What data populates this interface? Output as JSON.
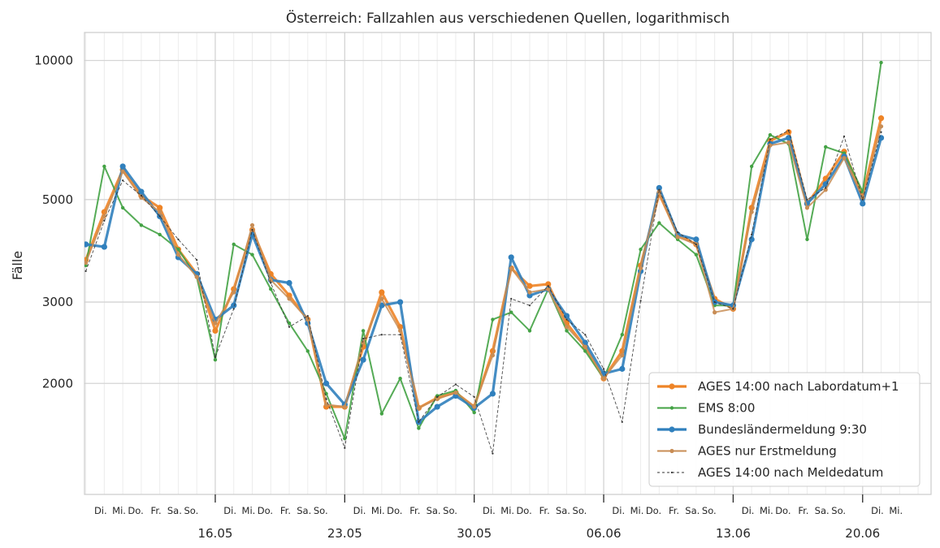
{
  "chart_data": {
    "type": "line",
    "title": "Österreich: Fallzahlen aus verschiedenen Quellen, logarithmisch",
    "xlabel": "",
    "ylabel": "Fälle",
    "y_scale": "log",
    "ylim": [
      1150,
      11500
    ],
    "yticks": [
      2000,
      3000,
      5000,
      10000
    ],
    "xlim": [
      -0.07,
      45.7
    ],
    "week_ticks": [
      7,
      14,
      21,
      28,
      35,
      42
    ],
    "week_labels": [
      "16.05",
      "23.05",
      "30.05",
      "06.06",
      "13.06",
      "20.06"
    ],
    "day_labels": [
      {
        "x": 0.8,
        "label": "Di."
      },
      {
        "x": 1.8,
        "label": "Mi."
      },
      {
        "x": 2.7,
        "label": "Do."
      },
      {
        "x": 3.8,
        "label": "Fr."
      },
      {
        "x": 4.8,
        "label": "Sa."
      },
      {
        "x": 5.7,
        "label": "So."
      },
      {
        "x": 7.8,
        "label": "Di."
      },
      {
        "x": 8.8,
        "label": "Mi."
      },
      {
        "x": 9.7,
        "label": "Do."
      },
      {
        "x": 10.8,
        "label": "Fr."
      },
      {
        "x": 11.8,
        "label": "Sa."
      },
      {
        "x": 12.7,
        "label": "So."
      },
      {
        "x": 14.8,
        "label": "Di."
      },
      {
        "x": 15.8,
        "label": "Mi."
      },
      {
        "x": 16.7,
        "label": "Do."
      },
      {
        "x": 17.8,
        "label": "Fr."
      },
      {
        "x": 18.8,
        "label": "Sa."
      },
      {
        "x": 19.7,
        "label": "So."
      },
      {
        "x": 21.8,
        "label": "Di."
      },
      {
        "x": 22.8,
        "label": "Mi."
      },
      {
        "x": 23.7,
        "label": "Do."
      },
      {
        "x": 24.8,
        "label": "Fr."
      },
      {
        "x": 25.8,
        "label": "Sa."
      },
      {
        "x": 26.7,
        "label": "So."
      },
      {
        "x": 28.8,
        "label": "Di."
      },
      {
        "x": 29.8,
        "label": "Mi."
      },
      {
        "x": 30.7,
        "label": "Do."
      },
      {
        "x": 31.8,
        "label": "Fr."
      },
      {
        "x": 32.8,
        "label": "Sa."
      },
      {
        "x": 33.7,
        "label": "So."
      },
      {
        "x": 35.8,
        "label": "Di."
      },
      {
        "x": 36.8,
        "label": "Mi."
      },
      {
        "x": 37.7,
        "label": "Do."
      },
      {
        "x": 38.8,
        "label": "Fr."
      },
      {
        "x": 39.8,
        "label": "Sa."
      },
      {
        "x": 40.7,
        "label": "So."
      },
      {
        "x": 42.8,
        "label": "Di."
      },
      {
        "x": 43.8,
        "label": "Mi."
      }
    ],
    "grid": true,
    "legend_position": "bottom-right",
    "series": [
      {
        "name": "AGES 14:00 nach Labordatum+1",
        "color": "#ee8427",
        "width": 3.2,
        "marker": 3.6,
        "dash": "",
        "x": [
          0,
          1,
          2,
          3,
          4,
          5,
          6,
          7,
          8,
          9,
          10,
          11,
          12,
          13,
          14,
          15,
          16,
          17,
          18,
          19,
          20,
          21,
          22,
          23,
          24,
          25,
          26,
          27,
          28,
          29,
          30,
          31,
          32,
          33,
          34,
          35,
          36,
          37,
          38,
          39,
          40,
          41,
          42,
          43
        ],
        "values": [
          3700,
          4700,
          5800,
          5100,
          4800,
          3900,
          3450,
          2600,
          3200,
          4300,
          3450,
          3100,
          2750,
          1780,
          1780,
          2400,
          3150,
          2650,
          1770,
          1860,
          1910,
          1780,
          2350,
          3550,
          3250,
          3280,
          2700,
          2400,
          2050,
          2350,
          3600,
          5150,
          4200,
          4000,
          3050,
          2900,
          4800,
          6700,
          7000,
          4900,
          5550,
          6350,
          5100,
          7500
        ]
      },
      {
        "name": "EMS 8:00",
        "color": "#43a244",
        "width": 2,
        "marker": 2.2,
        "dash": "",
        "x": [
          0,
          1,
          2,
          3,
          4,
          5,
          6,
          7,
          8,
          9,
          10,
          11,
          12,
          13,
          14,
          15,
          16,
          17,
          18,
          19,
          20,
          21,
          22,
          23,
          24,
          25,
          26,
          27,
          28,
          29,
          30,
          31,
          32,
          33,
          34,
          35,
          36,
          37,
          38,
          39,
          40,
          41,
          42,
          43
        ],
        "values": [
          3600,
          5900,
          4800,
          4400,
          4200,
          3900,
          3400,
          2250,
          4000,
          3800,
          3200,
          2700,
          2350,
          1900,
          1520,
          2600,
          1720,
          2050,
          1600,
          1880,
          1930,
          1730,
          2750,
          2850,
          2600,
          3200,
          2600,
          2350,
          2050,
          2550,
          3900,
          4450,
          4100,
          3800,
          2950,
          2950,
          5900,
          6900,
          6600,
          4100,
          6500,
          6300,
          5200,
          9900
        ]
      },
      {
        "name": "Bundesländermeldung 9:30",
        "color": "#3080bd",
        "width": 3.2,
        "marker": 3.6,
        "dash": "",
        "x": [
          0,
          1,
          2,
          3,
          4,
          5,
          6,
          7,
          8,
          9,
          10,
          11,
          12,
          13,
          14,
          15,
          16,
          17,
          18,
          19,
          20,
          21,
          22,
          23,
          24,
          25,
          26,
          27,
          28,
          29,
          30,
          31,
          32,
          33,
          34,
          35,
          36,
          37,
          38,
          39,
          40,
          41,
          42,
          43
        ],
        "values": [
          4000,
          3950,
          5900,
          5200,
          4600,
          3750,
          3450,
          2750,
          2950,
          4200,
          3350,
          3300,
          2700,
          2000,
          1800,
          2250,
          2950,
          3000,
          1650,
          1780,
          1880,
          1770,
          1900,
          3750,
          3100,
          3200,
          2800,
          2450,
          2100,
          2150,
          3500,
          5300,
          4200,
          4100,
          3000,
          2950,
          4100,
          6600,
          6800,
          4900,
          5400,
          6200,
          4900,
          6800
        ]
      },
      {
        "name": "AGES nur Erstmeldung",
        "color": "#c88d55",
        "width": 2,
        "marker": 2.6,
        "dash": "",
        "x": [
          0,
          1,
          2,
          3,
          4,
          5,
          6,
          7,
          8,
          9,
          10,
          11,
          12,
          13,
          14,
          15,
          16,
          17,
          18,
          19,
          20,
          21,
          22,
          23,
          24,
          25,
          26,
          27,
          28,
          29,
          30,
          31,
          32,
          33,
          34,
          35,
          36,
          37,
          38,
          39,
          40,
          41,
          42,
          43
        ],
        "values": [
          3650,
          4600,
          5750,
          5050,
          4700,
          3800,
          3400,
          2700,
          3150,
          4400,
          3350,
          3050,
          2750,
          1800,
          1780,
          2450,
          3050,
          2600,
          1770,
          1850,
          1910,
          1780,
          2300,
          3550,
          3150,
          3200,
          2650,
          2400,
          2050,
          2300,
          3550,
          5200,
          4150,
          4000,
          2850,
          2900,
          4700,
          6550,
          6650,
          4800,
          5250,
          6150,
          5050,
          7200
        ]
      },
      {
        "name": "AGES 14:00 nach Meldedatum",
        "color": "#333333",
        "width": 0.9,
        "marker": 1.1,
        "dash": "3,3",
        "x": [
          0,
          1,
          2,
          3,
          4,
          5,
          6,
          7,
          8,
          9,
          10,
          11,
          12,
          13,
          14,
          15,
          16,
          17,
          18,
          19,
          20,
          21,
          22,
          23,
          24,
          25,
          26,
          27,
          28,
          29,
          30,
          31,
          32,
          33,
          34,
          35,
          36,
          37,
          38,
          39,
          40,
          41,
          42,
          43
        ],
        "values": [
          3500,
          4500,
          5500,
          5100,
          4600,
          4100,
          3700,
          2280,
          2900,
          4300,
          3300,
          2650,
          2800,
          1850,
          1450,
          2500,
          2550,
          2550,
          1650,
          1870,
          1990,
          1870,
          1410,
          3050,
          2950,
          3250,
          2750,
          2550,
          2150,
          1650,
          3020,
          5250,
          4250,
          4000,
          3000,
          2900,
          4200,
          6750,
          7050,
          5000,
          5300,
          6850,
          5000,
          7000
        ]
      }
    ]
  }
}
